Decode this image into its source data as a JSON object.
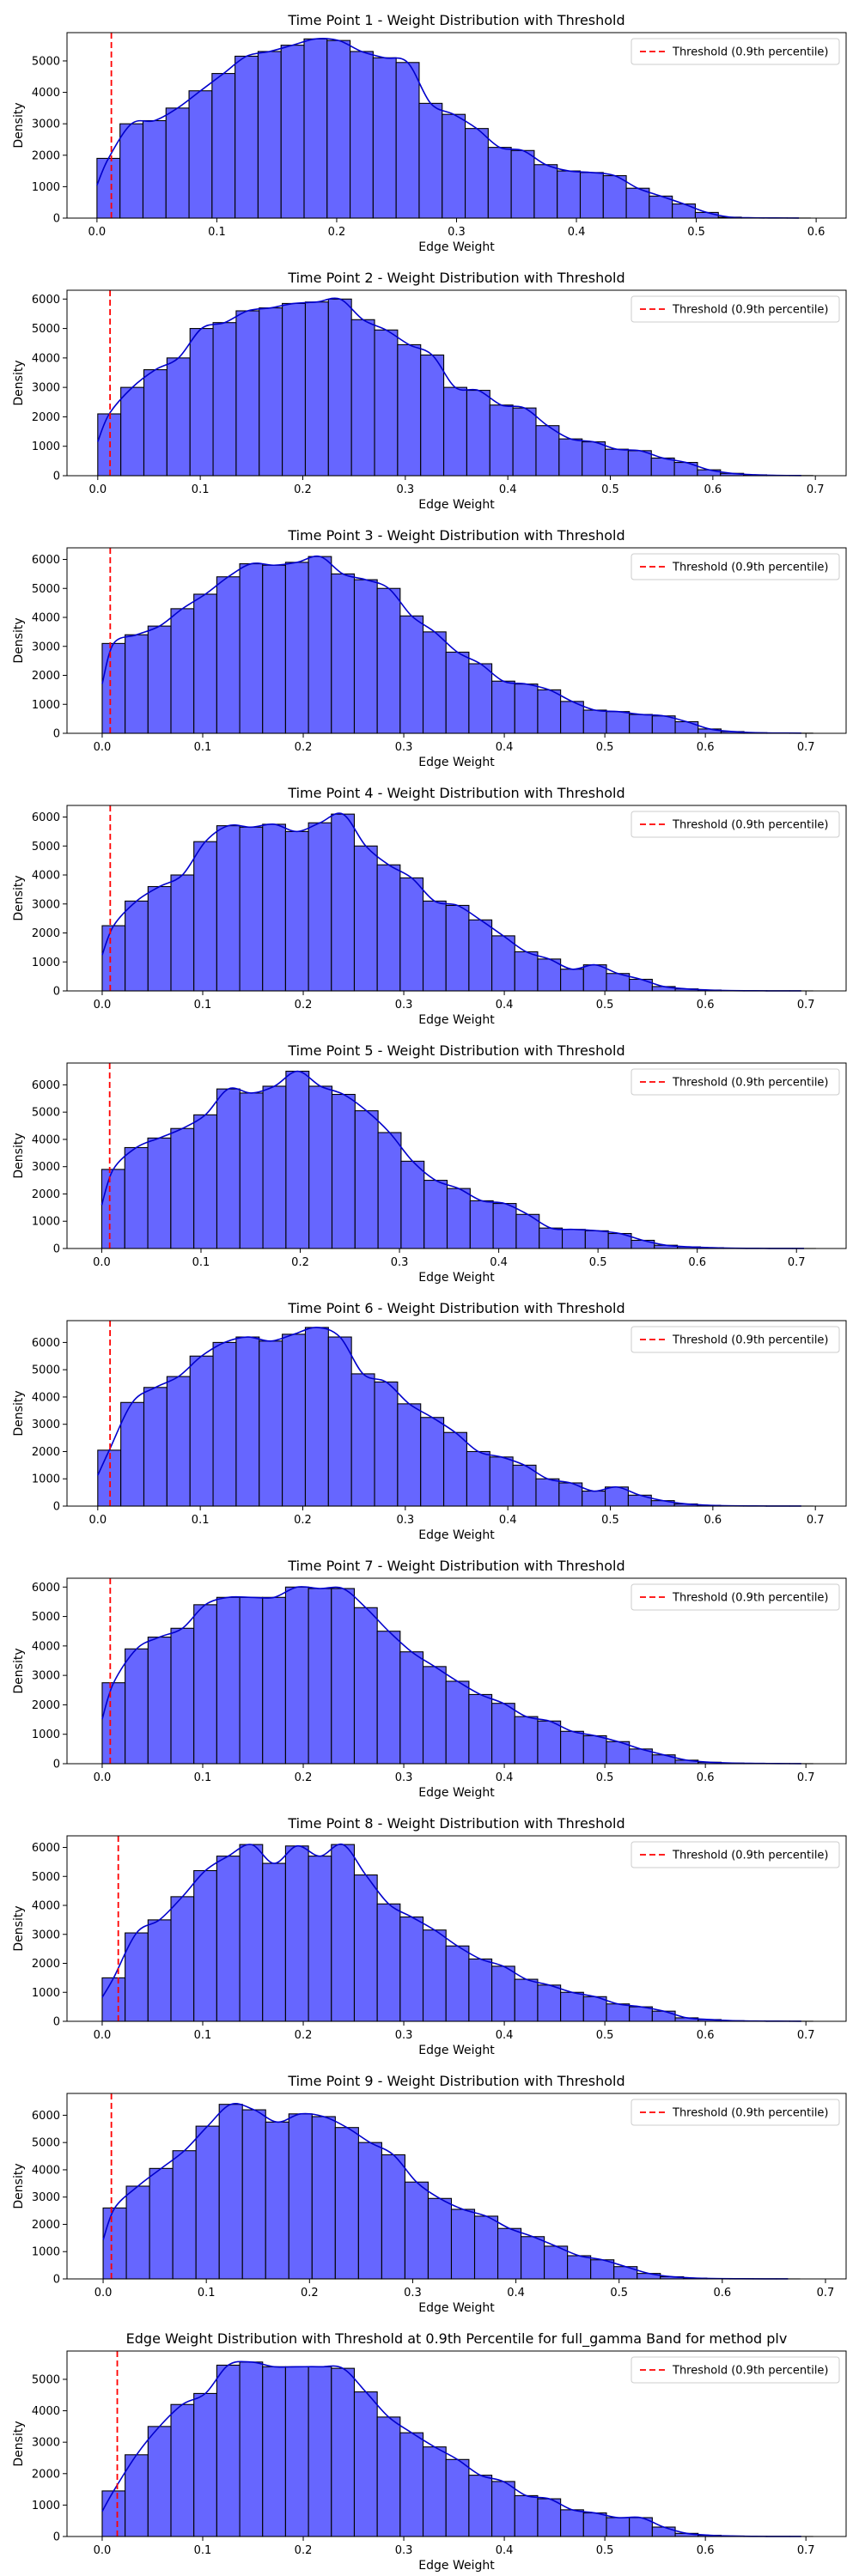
{
  "colors": {
    "bar_fill": "#6666ff",
    "bar_edge": "#000000",
    "kde": "#0000cc",
    "threshold": "#ff0000",
    "frame": "#000000"
  },
  "chart_data": [
    {
      "type": "bar",
      "title": "Time Point 1 - Weight Distribution with Threshold",
      "xlabel": "Edge Weight",
      "ylabel": "Density",
      "legend_label": "Threshold (0.9th percentile)",
      "legend_position": "top-right",
      "threshold": 0.012,
      "bin_start": 0.0,
      "bin_width": 0.0192,
      "xlim": [
        -0.025,
        0.625
      ],
      "ylim": [
        0,
        5900
      ],
      "xticks": [
        0,
        0.1,
        0.2,
        0.3,
        0.4,
        0.5,
        0.6
      ],
      "xtick_labels": [
        "0.0",
        "0.1",
        "0.2",
        "0.3",
        "0.4",
        "0.5",
        "0.6"
      ],
      "yticks": [
        0,
        1000,
        2000,
        3000,
        4000,
        5000
      ],
      "ytick_labels": [
        "0",
        "1000",
        "2000",
        "3000",
        "4000",
        "5000"
      ],
      "values": [
        1900,
        3000,
        3100,
        3500,
        4050,
        4600,
        5150,
        5300,
        5500,
        5700,
        5650,
        5300,
        5100,
        4950,
        3650,
        3300,
        2850,
        2250,
        2150,
        1700,
        1500,
        1450,
        1350,
        950,
        700,
        450,
        180,
        30,
        10,
        5,
        2
      ]
    },
    {
      "type": "bar",
      "title": "Time Point 2 - Weight Distribution with Threshold",
      "xlabel": "Edge Weight",
      "ylabel": "Density",
      "legend_label": "Threshold (0.9th percentile)",
      "legend_position": "top-right",
      "threshold": 0.012,
      "bin_start": 0.0,
      "bin_width": 0.0225,
      "xlim": [
        -0.03,
        0.73
      ],
      "ylim": [
        0,
        6300
      ],
      "xticks": [
        0,
        0.1,
        0.2,
        0.3,
        0.4,
        0.5,
        0.6,
        0.7
      ],
      "xtick_labels": [
        "0.0",
        "0.1",
        "0.2",
        "0.3",
        "0.4",
        "0.5",
        "0.6",
        "0.7"
      ],
      "yticks": [
        0,
        1000,
        2000,
        3000,
        4000,
        5000,
        6000
      ],
      "ytick_labels": [
        "0",
        "1000",
        "2000",
        "3000",
        "4000",
        "5000",
        "6000"
      ],
      "values": [
        2100,
        3000,
        3600,
        4000,
        5000,
        5200,
        5600,
        5700,
        5850,
        5900,
        6000,
        5300,
        4950,
        4450,
        4100,
        3000,
        2900,
        2400,
        2300,
        1700,
        1250,
        1150,
        900,
        850,
        600,
        450,
        200,
        80,
        30,
        10,
        5
      ]
    },
    {
      "type": "bar",
      "title": "Time Point 3 - Weight Distribution with Threshold",
      "xlabel": "Edge Weight",
      "ylabel": "Density",
      "legend_label": "Threshold (0.9th percentile)",
      "legend_position": "top-right",
      "threshold": 0.008,
      "bin_start": 0.0,
      "bin_width": 0.0228,
      "xlim": [
        -0.035,
        0.74
      ],
      "ylim": [
        0,
        6400
      ],
      "xticks": [
        0,
        0.1,
        0.2,
        0.3,
        0.4,
        0.5,
        0.6,
        0.7
      ],
      "xtick_labels": [
        "0.0",
        "0.1",
        "0.2",
        "0.3",
        "0.4",
        "0.5",
        "0.6",
        "0.7"
      ],
      "yticks": [
        0,
        1000,
        2000,
        3000,
        4000,
        5000,
        6000
      ],
      "ytick_labels": [
        "0",
        "1000",
        "2000",
        "3000",
        "4000",
        "5000",
        "6000"
      ],
      "values": [
        3100,
        3400,
        3700,
        4300,
        4800,
        5400,
        5850,
        5800,
        5900,
        6100,
        5500,
        5300,
        5000,
        4050,
        3500,
        2800,
        2400,
        1800,
        1700,
        1500,
        1100,
        800,
        750,
        650,
        600,
        400,
        150,
        60,
        20,
        10,
        5
      ]
    },
    {
      "type": "bar",
      "title": "Time Point 4 - Weight Distribution with Threshold",
      "xlabel": "Edge Weight",
      "ylabel": "Density",
      "legend_label": "Threshold (0.9th percentile)",
      "legend_position": "top-right",
      "threshold": 0.008,
      "bin_start": 0.0,
      "bin_width": 0.0228,
      "xlim": [
        -0.035,
        0.74
      ],
      "ylim": [
        0,
        6400
      ],
      "xticks": [
        0,
        0.1,
        0.2,
        0.3,
        0.4,
        0.5,
        0.6,
        0.7
      ],
      "xtick_labels": [
        "0.0",
        "0.1",
        "0.2",
        "0.3",
        "0.4",
        "0.5",
        "0.6",
        "0.7"
      ],
      "yticks": [
        0,
        1000,
        2000,
        3000,
        4000,
        5000,
        6000
      ],
      "ytick_labels": [
        "0",
        "1000",
        "2000",
        "3000",
        "4000",
        "5000",
        "6000"
      ],
      "values": [
        2250,
        3100,
        3600,
        4000,
        5150,
        5700,
        5650,
        5750,
        5500,
        5800,
        6100,
        5000,
        4350,
        3900,
        3100,
        2950,
        2450,
        1900,
        1350,
        1100,
        750,
        900,
        600,
        400,
        150,
        70,
        30,
        10,
        5,
        2,
        1
      ]
    },
    {
      "type": "bar",
      "title": "Time Point 5 - Weight Distribution with Threshold",
      "xlabel": "Edge Weight",
      "ylabel": "Density",
      "legend_label": "Threshold (0.9th percentile)",
      "legend_position": "top-right",
      "threshold": 0.008,
      "bin_start": 0.0,
      "bin_width": 0.0232,
      "xlim": [
        -0.035,
        0.75
      ],
      "ylim": [
        0,
        6800
      ],
      "xticks": [
        0,
        0.1,
        0.2,
        0.3,
        0.4,
        0.5,
        0.6,
        0.7
      ],
      "xtick_labels": [
        "0.0",
        "0.1",
        "0.2",
        "0.3",
        "0.4",
        "0.5",
        "0.6",
        "0.7"
      ],
      "yticks": [
        0,
        1000,
        2000,
        3000,
        4000,
        5000,
        6000
      ],
      "ytick_labels": [
        "0",
        "1000",
        "2000",
        "3000",
        "4000",
        "5000",
        "6000"
      ],
      "values": [
        2900,
        3700,
        4050,
        4400,
        4900,
        5850,
        5700,
        5950,
        6500,
        5950,
        5650,
        5050,
        4250,
        3200,
        2500,
        2200,
        1750,
        1650,
        1250,
        750,
        700,
        650,
        550,
        300,
        120,
        60,
        30,
        10,
        5,
        2,
        1
      ]
    },
    {
      "type": "bar",
      "title": "Time Point 6 - Weight Distribution with Threshold",
      "xlabel": "Edge Weight",
      "ylabel": "Density",
      "legend_label": "Threshold (0.9th percentile)",
      "legend_position": "top-right",
      "threshold": 0.012,
      "bin_start": 0.0,
      "bin_width": 0.0225,
      "xlim": [
        -0.03,
        0.73
      ],
      "ylim": [
        0,
        6800
      ],
      "xticks": [
        0,
        0.1,
        0.2,
        0.3,
        0.4,
        0.5,
        0.6,
        0.7
      ],
      "xtick_labels": [
        "0.0",
        "0.1",
        "0.2",
        "0.3",
        "0.4",
        "0.5",
        "0.6",
        "0.7"
      ],
      "yticks": [
        0,
        1000,
        2000,
        3000,
        4000,
        5000,
        6000
      ],
      "ytick_labels": [
        "0",
        "1000",
        "2000",
        "3000",
        "4000",
        "5000",
        "6000"
      ],
      "values": [
        2050,
        3800,
        4350,
        4750,
        5500,
        6000,
        6200,
        6050,
        6300,
        6550,
        6200,
        4850,
        4550,
        3750,
        3250,
        2700,
        2000,
        1800,
        1500,
        1000,
        850,
        550,
        700,
        400,
        200,
        80,
        30,
        10,
        5,
        2,
        1
      ]
    },
    {
      "type": "bar",
      "title": "Time Point 7 - Weight Distribution with Threshold",
      "xlabel": "Edge Weight",
      "ylabel": "Density",
      "legend_label": "Threshold (0.9th percentile)",
      "legend_position": "top-right",
      "threshold": 0.008,
      "bin_start": 0.0,
      "bin_width": 0.0228,
      "xlim": [
        -0.035,
        0.74
      ],
      "ylim": [
        0,
        6300
      ],
      "xticks": [
        0,
        0.1,
        0.2,
        0.3,
        0.4,
        0.5,
        0.6,
        0.7
      ],
      "xtick_labels": [
        "0.0",
        "0.1",
        "0.2",
        "0.3",
        "0.4",
        "0.5",
        "0.6",
        "0.7"
      ],
      "yticks": [
        0,
        1000,
        2000,
        3000,
        4000,
        5000,
        6000
      ],
      "ytick_labels": [
        "0",
        "1000",
        "2000",
        "3000",
        "4000",
        "5000",
        "6000"
      ],
      "values": [
        2750,
        3900,
        4300,
        4600,
        5400,
        5650,
        5650,
        5650,
        6000,
        5950,
        5950,
        5300,
        4500,
        3800,
        3300,
        2800,
        2350,
        2050,
        1600,
        1450,
        1100,
        950,
        750,
        500,
        300,
        120,
        50,
        20,
        10,
        5,
        2
      ]
    },
    {
      "type": "bar",
      "title": "Time Point 8 - Weight Distribution with Threshold",
      "xlabel": "Edge Weight",
      "ylabel": "Density",
      "legend_label": "Threshold (0.9th percentile)",
      "legend_position": "top-right",
      "threshold": 0.016,
      "bin_start": 0.0,
      "bin_width": 0.0228,
      "xlim": [
        -0.035,
        0.74
      ],
      "ylim": [
        0,
        6400
      ],
      "xticks": [
        0,
        0.1,
        0.2,
        0.3,
        0.4,
        0.5,
        0.6,
        0.7
      ],
      "xtick_labels": [
        "0.0",
        "0.1",
        "0.2",
        "0.3",
        "0.4",
        "0.5",
        "0.6",
        "0.7"
      ],
      "yticks": [
        0,
        1000,
        2000,
        3000,
        4000,
        5000,
        6000
      ],
      "ytick_labels": [
        "0",
        "1000",
        "2000",
        "3000",
        "4000",
        "5000",
        "6000"
      ],
      "values": [
        1500,
        3050,
        3500,
        4300,
        5200,
        5700,
        6100,
        5450,
        6050,
        5700,
        6100,
        5050,
        4050,
        3600,
        3150,
        2600,
        2150,
        1900,
        1450,
        1250,
        1000,
        850,
        600,
        500,
        350,
        120,
        60,
        20,
        10,
        5,
        2
      ]
    },
    {
      "type": "bar",
      "title": "Time Point 9 - Weight Distribution with Threshold",
      "xlabel": "Edge Weight",
      "ylabel": "Density",
      "legend_label": "Threshold (0.9th percentile)",
      "legend_position": "top-right",
      "threshold": 0.008,
      "bin_start": 0.0,
      "bin_width": 0.0225,
      "xlim": [
        -0.035,
        0.72
      ],
      "ylim": [
        0,
        6800
      ],
      "xticks": [
        0,
        0.1,
        0.2,
        0.3,
        0.4,
        0.5,
        0.6,
        0.7
      ],
      "xtick_labels": [
        "0.0",
        "0.1",
        "0.2",
        "0.3",
        "0.4",
        "0.5",
        "0.6",
        "0.7"
      ],
      "yticks": [
        0,
        1000,
        2000,
        3000,
        4000,
        5000,
        6000
      ],
      "ytick_labels": [
        "0",
        "1000",
        "2000",
        "3000",
        "4000",
        "5000",
        "6000"
      ],
      "values": [
        2600,
        3400,
        4050,
        4700,
        5600,
        6400,
        6200,
        5750,
        6050,
        5950,
        5550,
        5000,
        4550,
        3550,
        2950,
        2550,
        2300,
        1850,
        1550,
        1200,
        850,
        700,
        450,
        200,
        80,
        30,
        10,
        5,
        2,
        1
      ]
    },
    {
      "type": "bar",
      "title": "Edge Weight Distribution with Threshold at 0.9th Percentile for full_gamma Band for method plv",
      "xlabel": "Edge Weight",
      "ylabel": "Density",
      "legend_label": "Threshold (0.9th percentile)",
      "legend_position": "top-right",
      "threshold": 0.015,
      "bin_start": 0.0,
      "bin_width": 0.0228,
      "xlim": [
        -0.035,
        0.74
      ],
      "ylim": [
        0,
        5900
      ],
      "xticks": [
        0,
        0.1,
        0.2,
        0.3,
        0.4,
        0.5,
        0.6,
        0.7
      ],
      "xtick_labels": [
        "0.0",
        "0.1",
        "0.2",
        "0.3",
        "0.4",
        "0.5",
        "0.6",
        "0.7"
      ],
      "yticks": [
        0,
        1000,
        2000,
        3000,
        4000,
        5000
      ],
      "ytick_labels": [
        "0",
        "1000",
        "2000",
        "3000",
        "4000",
        "5000"
      ],
      "values": [
        1450,
        2600,
        3500,
        4200,
        4550,
        5450,
        5550,
        5400,
        5400,
        5400,
        5350,
        4600,
        3800,
        3300,
        2850,
        2450,
        1950,
        1750,
        1300,
        1200,
        850,
        750,
        600,
        600,
        300,
        100,
        40,
        15,
        5,
        2,
        1
      ]
    }
  ]
}
